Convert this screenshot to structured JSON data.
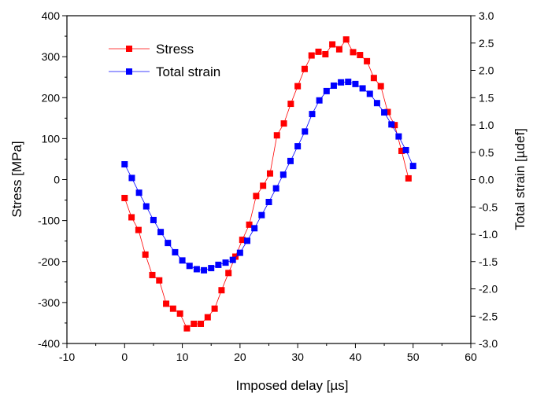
{
  "chart_data": {
    "type": "scatter",
    "xlabel": "Imposed delay [µs]",
    "ylabel_left": "Stress [MPa]",
    "ylabel_right": "Total strain [µdef]",
    "xlim": [
      -10,
      60
    ],
    "ylim_left": [
      -400,
      400
    ],
    "ylim_right": [
      -3.0,
      3.0
    ],
    "x_ticks": [
      -10,
      0,
      10,
      20,
      30,
      40,
      50,
      60
    ],
    "y_left_ticks": [
      -400,
      -300,
      -200,
      -100,
      0,
      100,
      200,
      300,
      400
    ],
    "y_right_ticks": [
      "-3.0",
      "-2.5",
      "-2.0",
      "-1.5",
      "-1.0",
      "-0.5",
      "0.0",
      "0.5",
      "1.0",
      "1.5",
      "2.0",
      "2.5",
      "3.0"
    ],
    "grid": false,
    "legend_position": "top-left",
    "series": [
      {
        "name": "Stress",
        "axis": "left",
        "color": "#ff0000",
        "marker": "square",
        "x": [
          0,
          1.2,
          2.4,
          3.6,
          4.8,
          6.0,
          7.2,
          8.4,
          9.6,
          10.8,
          12.0,
          13.2,
          14.4,
          15.6,
          16.8,
          18.0,
          19.2,
          20.4,
          21.6,
          22.8,
          24.0,
          25.2,
          26.4,
          27.6,
          28.8,
          30.0,
          31.2,
          32.4,
          33.6,
          34.8,
          36.0,
          37.2,
          38.4,
          39.6,
          40.8,
          42.0,
          43.2,
          44.4,
          45.6,
          46.8,
          48.0,
          49.2
        ],
        "y": [
          -45,
          -92,
          -123,
          -183,
          -233,
          -246,
          -303,
          -315,
          -327,
          -363,
          -352,
          -352,
          -336,
          -315,
          -270,
          -228,
          -188,
          -147,
          -110,
          -40,
          -15,
          15,
          108,
          137,
          185,
          228,
          270,
          303,
          312,
          306,
          330,
          318,
          342,
          311,
          304,
          289,
          248,
          228,
          165,
          133,
          70,
          3
        ]
      },
      {
        "name": "Total strain",
        "axis": "right",
        "color": "#0000ff",
        "marker": "square",
        "x": [
          0,
          1.25,
          2.5,
          3.75,
          5.0,
          6.25,
          7.5,
          8.75,
          10.0,
          11.25,
          12.5,
          13.75,
          15.0,
          16.25,
          17.5,
          18.75,
          20.0,
          21.25,
          22.5,
          23.75,
          25.0,
          26.25,
          27.5,
          28.75,
          30.0,
          31.25,
          32.5,
          33.75,
          35.0,
          36.25,
          37.5,
          38.75,
          40.0,
          41.25,
          42.5,
          43.75,
          45.0,
          46.25,
          47.5,
          48.75,
          50.0
        ],
        "y": [
          0.28,
          0.03,
          -0.24,
          -0.49,
          -0.74,
          -0.96,
          -1.16,
          -1.33,
          -1.48,
          -1.58,
          -1.64,
          -1.66,
          -1.62,
          -1.56,
          -1.52,
          -1.47,
          -1.34,
          -1.12,
          -0.89,
          -0.65,
          -0.41,
          -0.16,
          0.09,
          0.34,
          0.61,
          0.88,
          1.2,
          1.45,
          1.62,
          1.72,
          1.78,
          1.79,
          1.75,
          1.67,
          1.57,
          1.4,
          1.23,
          1.01,
          0.79,
          0.54,
          0.25
        ]
      }
    ]
  }
}
